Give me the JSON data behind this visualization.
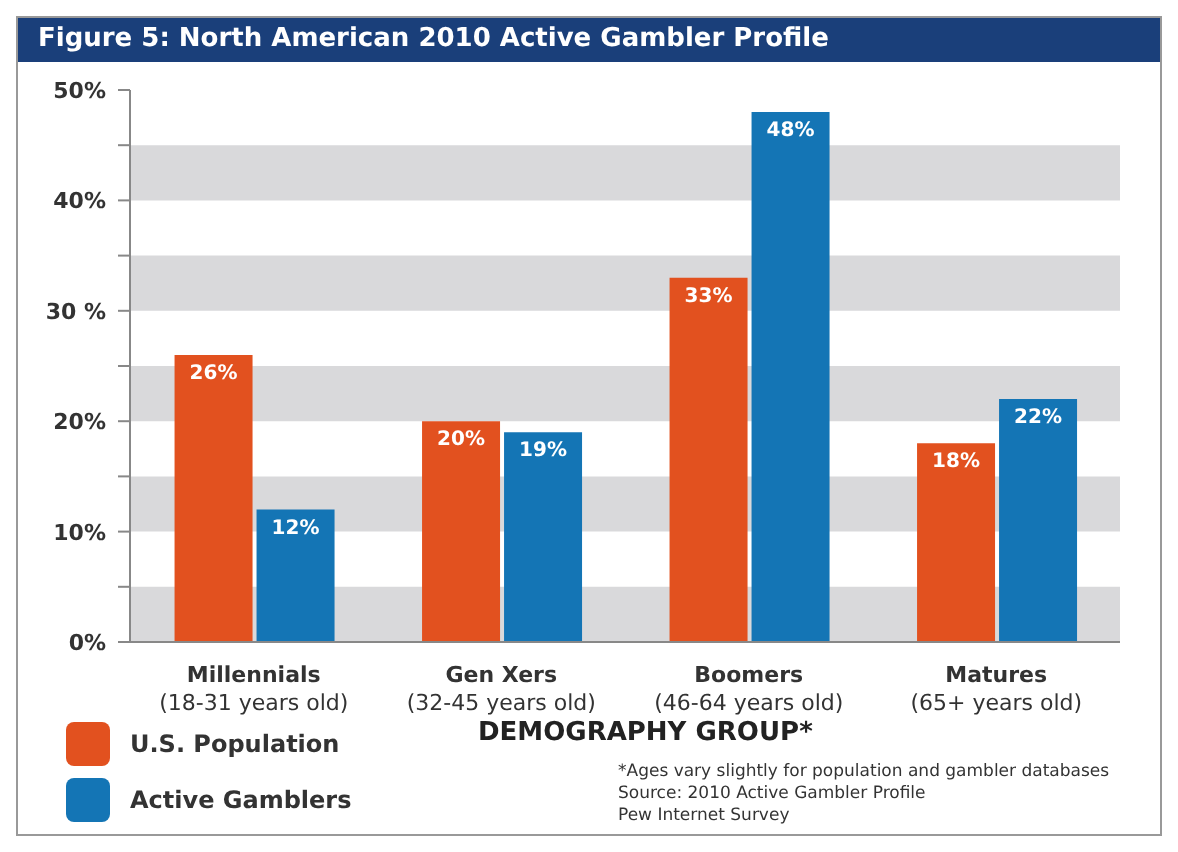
{
  "chart_data": {
    "type": "bar",
    "title": "Figure 5: North American 2010 Active Gambler Profile",
    "xlabel": "DEMOGRAPHY GROUP*",
    "categories": [
      "Millennials\n(18-31 years old)",
      "Gen Xers\n(32-45 years old)",
      "Boomers\n(46-64 years old)",
      "Matures\n(65+ years old)"
    ],
    "series": [
      {
        "name": "U.S. Population",
        "color": "#e2511f",
        "values": [
          26,
          20,
          33,
          18
        ],
        "value_labels": [
          "26%",
          "20%",
          "33%",
          "18%"
        ]
      },
      {
        "name": "Active Gamblers",
        "color": "#1475b5",
        "values": [
          12,
          19,
          48,
          22
        ],
        "value_labels": [
          "12%",
          "19%",
          "48%",
          "22%"
        ]
      }
    ],
    "ylim": [
      0,
      50
    ],
    "yticks": [
      {
        "value": 0,
        "label": "0%"
      },
      {
        "value": 5,
        "label": null
      },
      {
        "value": 10,
        "label": "10%"
      },
      {
        "value": 15,
        "label": null
      },
      {
        "value": 20,
        "label": "20%"
      },
      {
        "value": 25,
        "label": null
      },
      {
        "value": 30,
        "label": "30 %"
      },
      {
        "value": 35,
        "label": null
      },
      {
        "value": 40,
        "label": "40%"
      },
      {
        "value": 45,
        "label": null
      },
      {
        "value": 50,
        "label": "50%"
      }
    ],
    "bands": [
      {
        "axis": "y",
        "from": 0,
        "to": 5,
        "color": "#d9d9db"
      },
      {
        "axis": "y",
        "from": 10,
        "to": 15,
        "color": "#d9d9db"
      },
      {
        "axis": "y",
        "from": 20,
        "to": 25,
        "color": "#d9d9db"
      },
      {
        "axis": "y",
        "from": 30,
        "to": 35,
        "color": "#d9d9db"
      },
      {
        "axis": "y",
        "from": 40,
        "to": 45,
        "color": "#d9d9db"
      }
    ],
    "legend": "bottom left",
    "annotations": [
      "*Ages vary slightly for population and gambler databases",
      "Source: 2010 Active Gambler Profile",
      "Pew Internet Survey"
    ]
  }
}
